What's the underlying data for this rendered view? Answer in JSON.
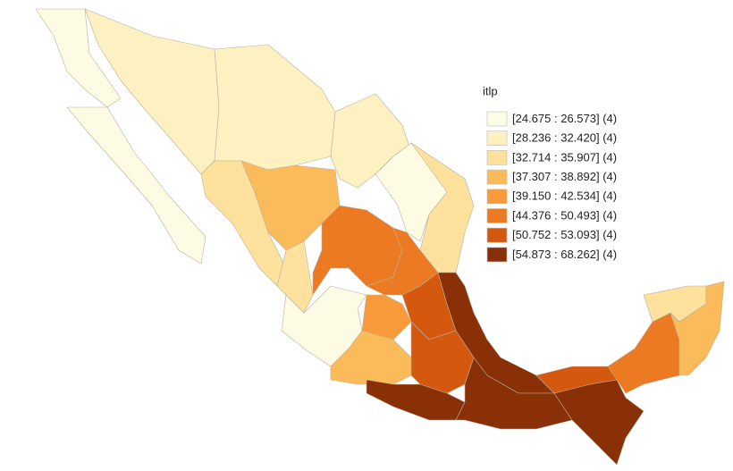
{
  "legend": {
    "title": "itlp",
    "items": [
      {
        "label": "[24.675 : 26.573] (4)",
        "color": "#fefbe4"
      },
      {
        "label": "[28.236 : 32.420] (4)",
        "color": "#fdf1c2"
      },
      {
        "label": "[32.714 : 35.907] (4)",
        "color": "#fde19c"
      },
      {
        "label": "[37.307 : 38.892] (4)",
        "color": "#fcbb5a"
      },
      {
        "label": "[39.150 : 42.534] (4)",
        "color": "#f99b3a"
      },
      {
        "label": "[44.376 : 50.493] (4)",
        "color": "#eb7a22"
      },
      {
        "label": "[50.752 : 53.093] (4)",
        "color": "#d4590f"
      },
      {
        "label": "[54.873 : 68.262] (4)",
        "color": "#893007"
      }
    ]
  }
}
